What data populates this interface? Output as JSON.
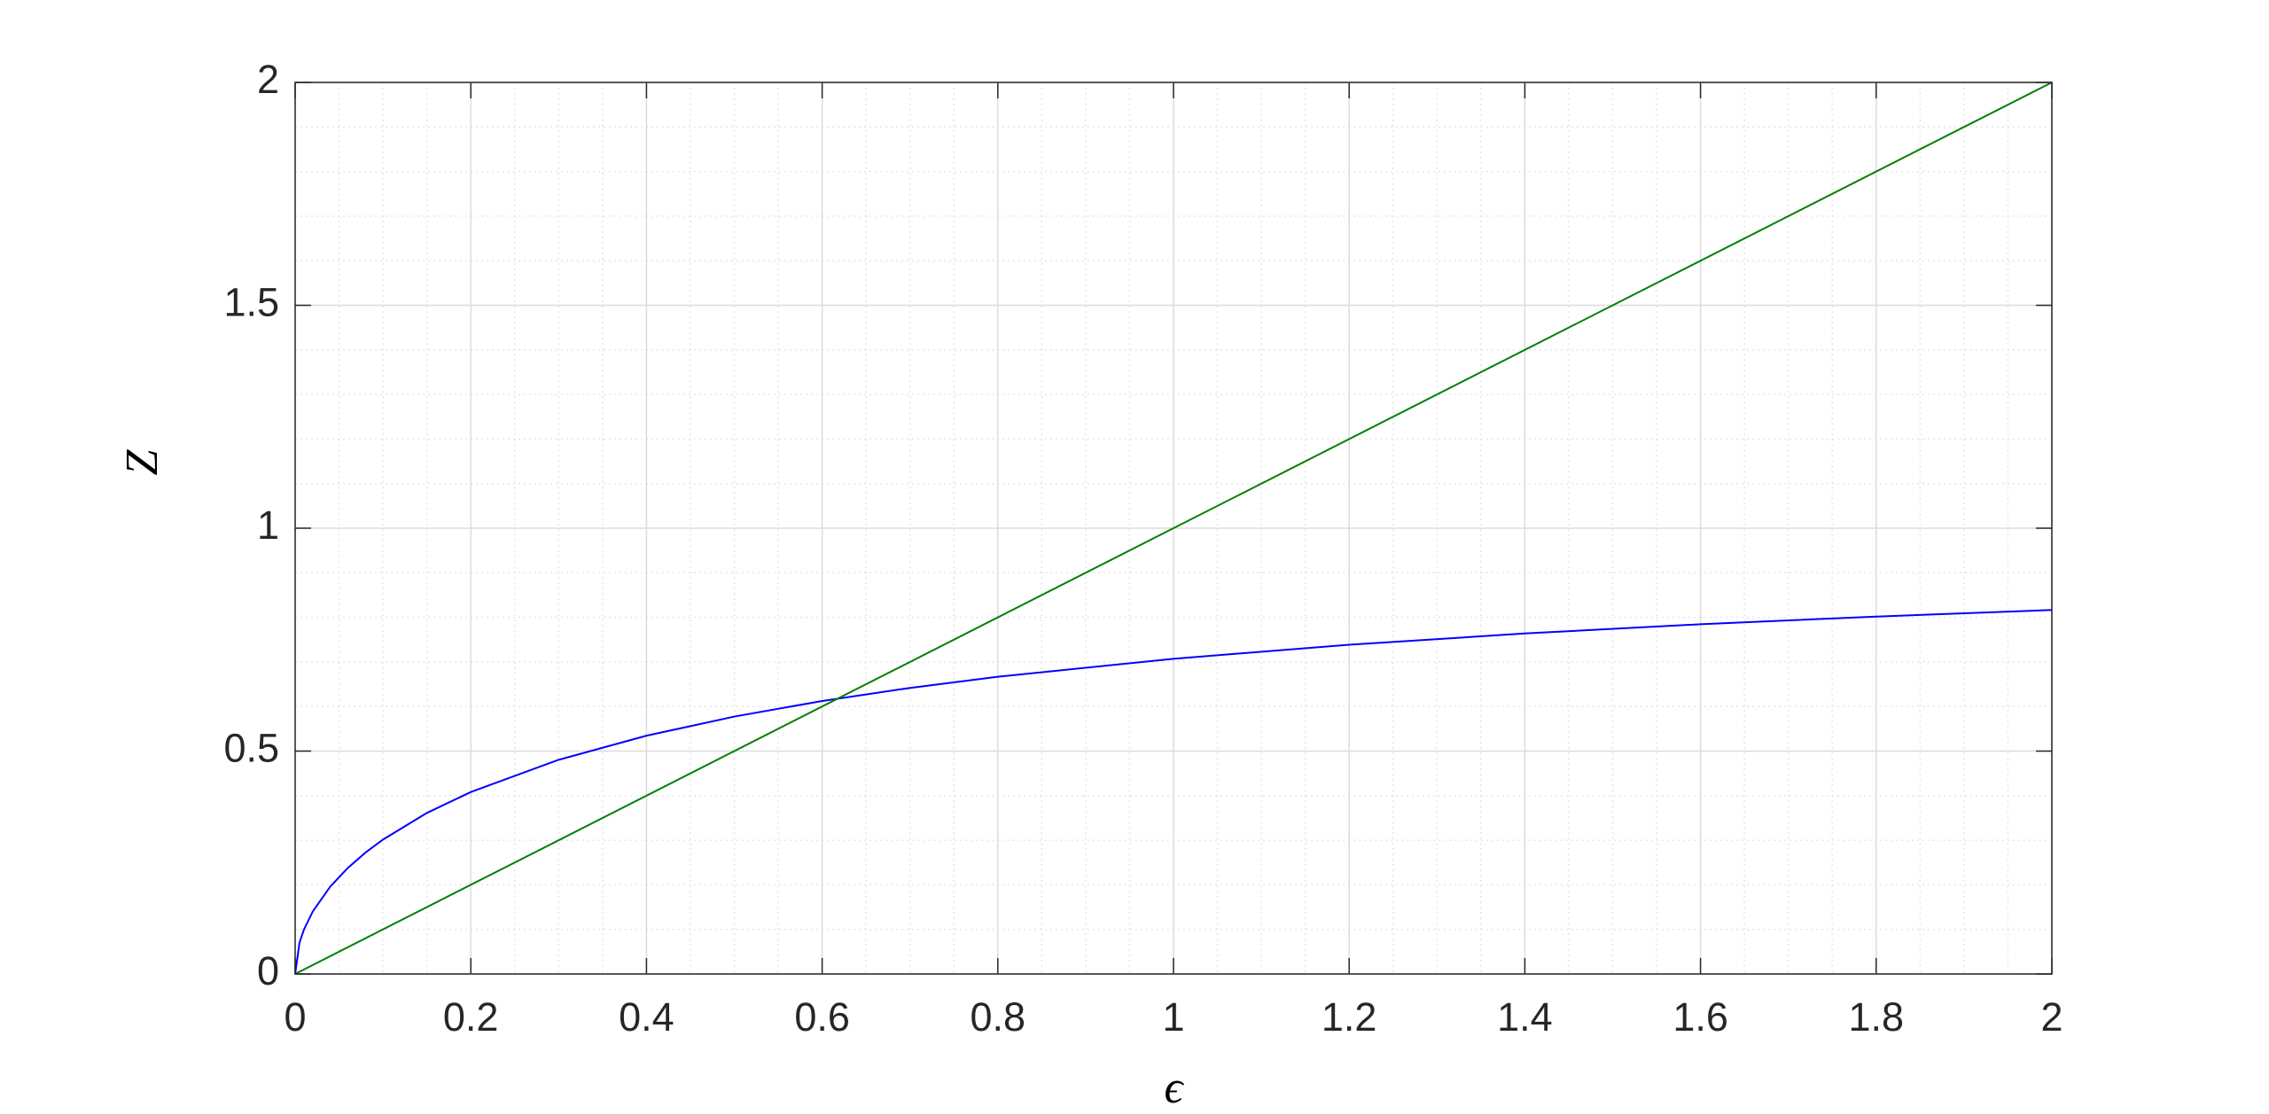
{
  "chart_data": {
    "type": "line",
    "xlabel": "ϵ",
    "ylabel": "Z",
    "series": [
      {
        "color": "#0000ff",
        "x": [
          0,
          0.005,
          0.01,
          0.02,
          0.04,
          0.06,
          0.08,
          0.1,
          0.15,
          0.2,
          0.3,
          0.4,
          0.5,
          0.6,
          0.7,
          0.8,
          1.0,
          1.2,
          1.4,
          1.6,
          1.8,
          2.0
        ],
        "values": [
          0,
          0.0705,
          0.0995,
          0.14,
          0.1961,
          0.2379,
          0.2722,
          0.3015,
          0.3612,
          0.4082,
          0.4804,
          0.5345,
          0.5774,
          0.6124,
          0.6417,
          0.6667,
          0.7071,
          0.7385,
          0.7638,
          0.7845,
          0.8018,
          0.8165
        ]
      },
      {
        "color": "#008000",
        "x": [
          0,
          2
        ],
        "values": [
          0,
          2
        ]
      }
    ],
    "xlim": [
      0,
      2
    ],
    "ylim": [
      0,
      2
    ],
    "xticks": [
      0,
      0.2,
      0.4,
      0.6,
      0.8,
      1,
      1.2,
      1.4,
      1.6,
      1.8,
      2
    ],
    "yticks": [
      0,
      0.5,
      1,
      1.5,
      2
    ],
    "grid": true,
    "minor_grid": true
  }
}
